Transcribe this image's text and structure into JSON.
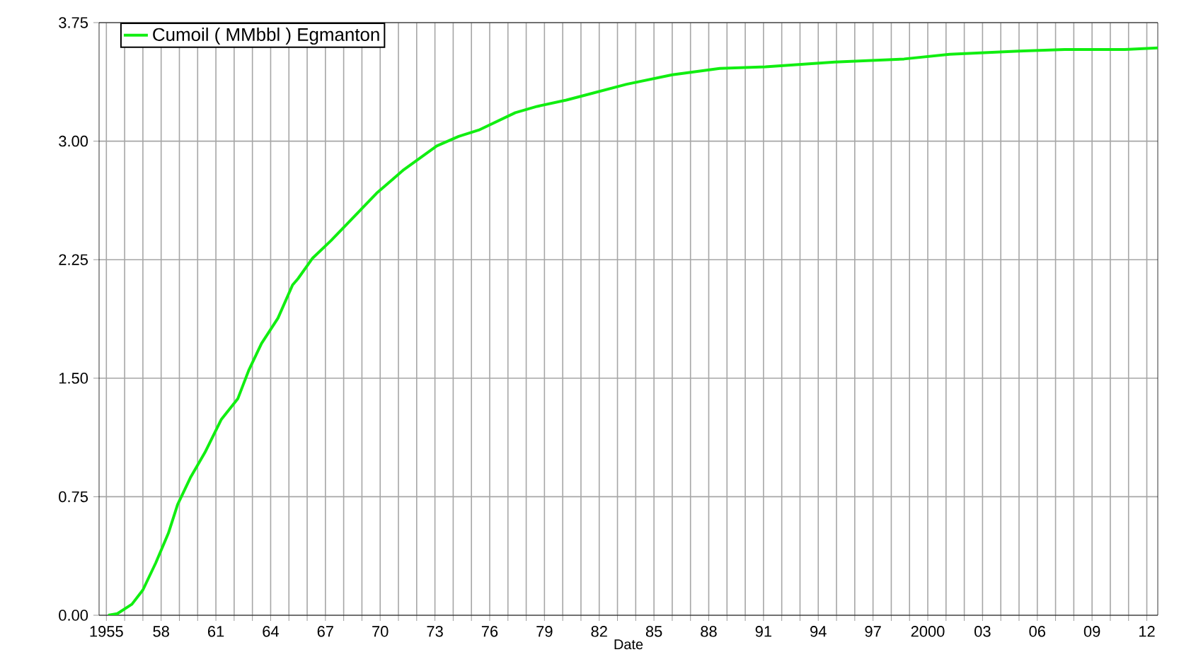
{
  "chart_data": {
    "type": "line",
    "xlabel": "Date",
    "xlim": [
      1954.6,
      2012.6
    ],
    "ylim": [
      0,
      3.75
    ],
    "xticks": [
      {
        "value": 1955,
        "label": "1955"
      },
      {
        "value": 1956,
        "label": null
      },
      {
        "value": 1957,
        "label": null
      },
      {
        "value": 1958,
        "label": "58"
      },
      {
        "value": 1959,
        "label": null
      },
      {
        "value": 1960,
        "label": null
      },
      {
        "value": 1961,
        "label": "61"
      },
      {
        "value": 1962,
        "label": null
      },
      {
        "value": 1963,
        "label": null
      },
      {
        "value": 1964,
        "label": "64"
      },
      {
        "value": 1965,
        "label": null
      },
      {
        "value": 1966,
        "label": null
      },
      {
        "value": 1967,
        "label": "67"
      },
      {
        "value": 1968,
        "label": null
      },
      {
        "value": 1969,
        "label": null
      },
      {
        "value": 1970,
        "label": "70"
      },
      {
        "value": 1971,
        "label": null
      },
      {
        "value": 1972,
        "label": null
      },
      {
        "value": 1973,
        "label": "73"
      },
      {
        "value": 1974,
        "label": null
      },
      {
        "value": 1975,
        "label": null
      },
      {
        "value": 1976,
        "label": "76"
      },
      {
        "value": 1977,
        "label": null
      },
      {
        "value": 1978,
        "label": null
      },
      {
        "value": 1979,
        "label": "79"
      },
      {
        "value": 1980,
        "label": null
      },
      {
        "value": 1981,
        "label": null
      },
      {
        "value": 1982,
        "label": "82"
      },
      {
        "value": 1983,
        "label": null
      },
      {
        "value": 1984,
        "label": null
      },
      {
        "value": 1985,
        "label": "85"
      },
      {
        "value": 1986,
        "label": null
      },
      {
        "value": 1987,
        "label": null
      },
      {
        "value": 1988,
        "label": "88"
      },
      {
        "value": 1989,
        "label": null
      },
      {
        "value": 1990,
        "label": null
      },
      {
        "value": 1991,
        "label": "91"
      },
      {
        "value": 1992,
        "label": null
      },
      {
        "value": 1993,
        "label": null
      },
      {
        "value": 1994,
        "label": "94"
      },
      {
        "value": 1995,
        "label": null
      },
      {
        "value": 1996,
        "label": null
      },
      {
        "value": 1997,
        "label": "97"
      },
      {
        "value": 1998,
        "label": null
      },
      {
        "value": 1999,
        "label": null
      },
      {
        "value": 2000,
        "label": "2000"
      },
      {
        "value": 2001,
        "label": null
      },
      {
        "value": 2002,
        "label": null
      },
      {
        "value": 2003,
        "label": "03"
      },
      {
        "value": 2004,
        "label": null
      },
      {
        "value": 2005,
        "label": null
      },
      {
        "value": 2006,
        "label": "06"
      },
      {
        "value": 2007,
        "label": null
      },
      {
        "value": 2008,
        "label": null
      },
      {
        "value": 2009,
        "label": "09"
      },
      {
        "value": 2010,
        "label": null
      },
      {
        "value": 2011,
        "label": null
      },
      {
        "value": 2012,
        "label": "12"
      }
    ],
    "yticks": [
      {
        "value": 0,
        "label": "0.00"
      },
      {
        "value": 0.75,
        "label": "0.75"
      },
      {
        "value": 1.5,
        "label": "1.50"
      },
      {
        "value": 2.25,
        "label": "2.25"
      },
      {
        "value": 3,
        "label": "3.00"
      },
      {
        "value": 3.75,
        "label": "3.75"
      }
    ],
    "grid": true,
    "legend": "top left",
    "marker": "none",
    "line_style": "solid",
    "series": [
      {
        "name": "Cumoil ( MMbbl ) Egmanton",
        "color": "#11ee11",
        "x": [
          1955.1,
          1955.6,
          1956.4,
          1957.0,
          1957.7,
          1958.4,
          1958.9,
          1959.6,
          1960.4,
          1961.3,
          1962.2,
          1962.8,
          1963.5,
          1964.4,
          1965.2,
          1965.5,
          1966.3,
          1967.3,
          1968.3,
          1969.8,
          1971.3,
          1973.1,
          1974.3,
          1975.4,
          1977.4,
          1978.6,
          1980.2,
          1981.2,
          1983.5,
          1986.0,
          1988.6,
          1991.1,
          1994.9,
          1998.7,
          2001.2,
          2005.0,
          2007.5,
          2010.8,
          2012.6
        ],
        "values": [
          0,
          0.01,
          0.07,
          0.16,
          0.33,
          0.52,
          0.7,
          0.87,
          1.03,
          1.24,
          1.37,
          1.55,
          1.72,
          1.88,
          2.09,
          2.13,
          2.26,
          2.37,
          2.49,
          2.67,
          2.82,
          2.97,
          3.03,
          3.07,
          3.18,
          3.22,
          3.26,
          3.29,
          3.36,
          3.42,
          3.46,
          3.47,
          3.5,
          3.52,
          3.55,
          3.57,
          3.58,
          3.58,
          3.59
        ]
      }
    ]
  }
}
